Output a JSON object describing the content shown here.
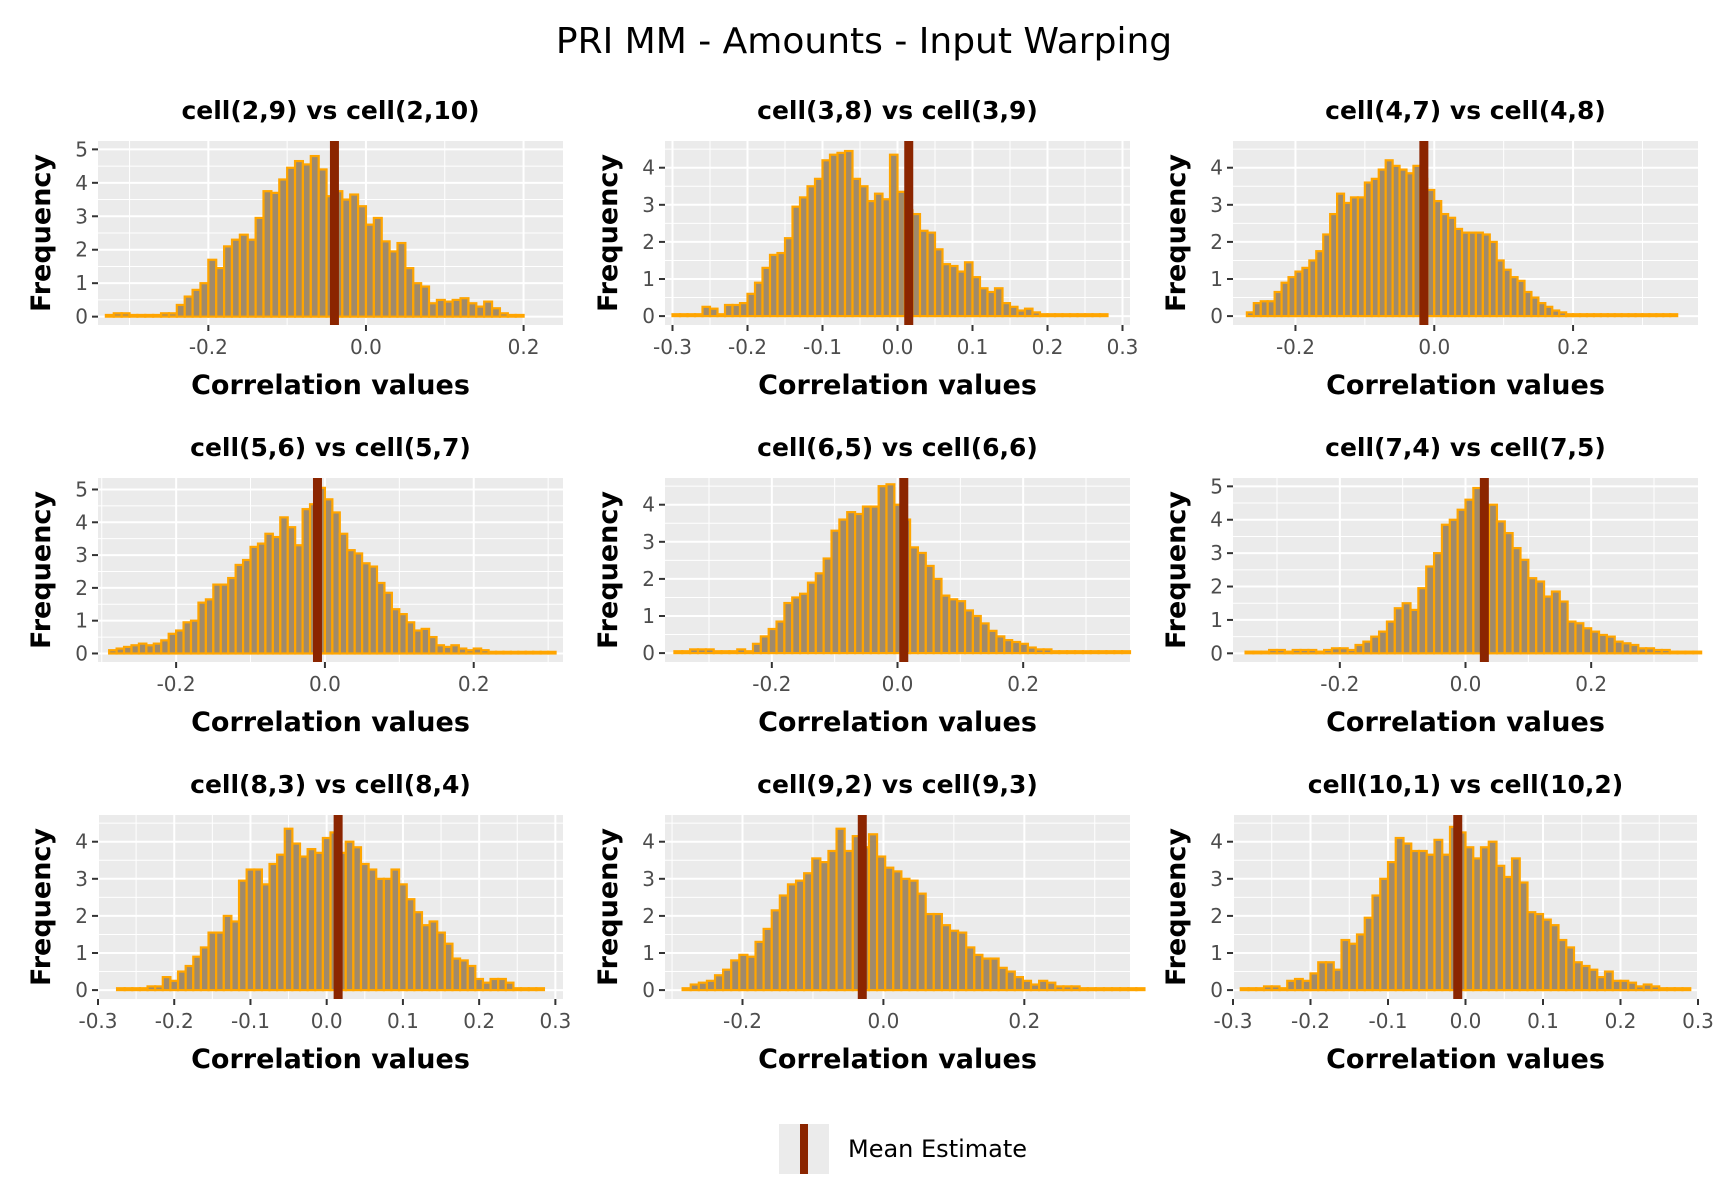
{
  "title": "PRI MM - Amounts - Input Warping",
  "legend": {
    "label": "Mean Estimate",
    "position": "bottom"
  },
  "colors": {
    "bar_fill": "#E69F00",
    "bar_inner": "#a08a6a",
    "bar_edge": "#FFA500",
    "mean_line": "#8B2500",
    "panel_bg": "#EBEBEB",
    "grid": "#FFFFFF"
  },
  "chart_data": [
    {
      "type": "histogram",
      "title": "cell(2,9) vs cell(2,10)",
      "xlabel": "Correlation values",
      "ylabel": "Frequency",
      "xlim": [
        -0.34,
        0.25
      ],
      "ylim": [
        -0.25,
        5.25
      ],
      "xticks": [
        -0.2,
        0.0,
        0.2
      ],
      "xtick_labels": [
        "-0.2",
        "0.0",
        "0.2"
      ],
      "yticks": [
        0,
        1,
        2,
        3,
        4,
        5
      ],
      "bins_start": -0.33,
      "bin_width": 0.01,
      "frequencies": [
        0.05,
        0.1,
        0.1,
        0.05,
        0.05,
        0.05,
        0.05,
        0.1,
        0.1,
        0.35,
        0.6,
        0.8,
        1.0,
        1.7,
        1.45,
        2.1,
        2.3,
        2.45,
        2.3,
        2.95,
        3.75,
        3.7,
        4.1,
        4.45,
        4.65,
        4.55,
        4.8,
        4.4,
        3.6,
        3.75,
        3.5,
        3.65,
        3.3,
        2.75,
        2.95,
        2.25,
        1.95,
        2.2,
        1.45,
        1.0,
        0.9,
        0.4,
        0.5,
        0.45,
        0.5,
        0.55,
        0.4,
        0.3,
        0.45,
        0.25,
        0.1,
        0.05,
        0.05
      ],
      "mean": -0.04,
      "grid": true
    },
    {
      "type": "histogram",
      "title": "cell(3,8) vs cell(3,9)",
      "xlabel": "Correlation values",
      "ylabel": "Frequency",
      "xlim": [
        -0.31,
        0.31
      ],
      "ylim": [
        -0.24,
        4.72
      ],
      "xticks": [
        -0.3,
        -0.2,
        -0.1,
        0.0,
        0.1,
        0.2,
        0.3
      ],
      "xtick_labels": [
        "-0.3",
        "-0.2",
        "-0.1",
        "0.0",
        "0.1",
        "0.2",
        "0.3"
      ],
      "yticks": [
        0,
        1,
        2,
        3,
        4
      ],
      "bins_start": -0.3,
      "bin_width": 0.01,
      "frequencies": [
        0.05,
        0.05,
        0.05,
        0.05,
        0.25,
        0.2,
        0.05,
        0.3,
        0.3,
        0.35,
        0.6,
        0.9,
        1.3,
        1.65,
        1.7,
        2.1,
        2.95,
        3.2,
        3.5,
        3.7,
        4.2,
        4.35,
        4.4,
        4.45,
        3.7,
        3.5,
        3.1,
        3.3,
        3.15,
        4.35,
        3.35,
        2.85,
        2.75,
        2.3,
        2.25,
        1.8,
        1.4,
        1.35,
        1.2,
        1.45,
        1.05,
        0.75,
        0.65,
        0.75,
        0.35,
        0.25,
        0.15,
        0.2,
        0.1,
        0.05,
        0.05,
        0.05,
        0.05,
        0.05,
        0.05,
        0.05,
        0.05,
        0.05
      ],
      "mean": 0.015,
      "grid": true
    },
    {
      "type": "histogram",
      "title": "cell(4,7) vs cell(4,8)",
      "xlabel": "Correlation values",
      "ylabel": "Frequency",
      "xlim": [
        -0.29,
        0.38
      ],
      "ylim": [
        -0.24,
        4.72
      ],
      "xticks": [
        -0.2,
        0.0,
        0.2
      ],
      "xtick_labels": [
        "-0.2",
        "0.0",
        "0.2"
      ],
      "yticks": [
        0,
        1,
        2,
        3,
        4
      ],
      "bins_start": -0.27,
      "bin_width": 0.01,
      "frequencies": [
        0.1,
        0.35,
        0.4,
        0.4,
        0.65,
        0.9,
        1.05,
        1.2,
        1.3,
        1.5,
        1.75,
        2.2,
        2.75,
        3.3,
        3.05,
        3.2,
        3.2,
        3.6,
        3.7,
        3.95,
        4.2,
        4.05,
        3.95,
        3.85,
        4.05,
        3.7,
        3.4,
        3.1,
        2.75,
        2.65,
        2.35,
        2.25,
        2.25,
        2.25,
        2.2,
        2.0,
        1.5,
        1.25,
        1.05,
        0.95,
        0.65,
        0.5,
        0.35,
        0.25,
        0.15,
        0.1,
        0.05,
        0.05,
        0.05,
        0.05,
        0.05,
        0.05,
        0.05,
        0.05,
        0.05,
        0.05,
        0.05,
        0.05,
        0.05,
        0.05,
        0.05,
        0.05
      ],
      "mean": -0.015,
      "grid": true
    },
    {
      "type": "histogram",
      "title": "cell(5,6) vs cell(5,7)",
      "xlabel": "Correlation values",
      "ylabel": "Frequency",
      "xlim": [
        -0.305,
        0.32
      ],
      "ylim": [
        -0.26,
        5.35
      ],
      "xticks": [
        -0.2,
        0.0,
        0.2
      ],
      "xtick_labels": [
        "-0.2",
        "0.0",
        "0.2"
      ],
      "yticks": [
        0,
        1,
        2,
        3,
        4,
        5
      ],
      "bins_start": -0.29,
      "bin_width": 0.01,
      "frequencies": [
        0.1,
        0.15,
        0.2,
        0.25,
        0.3,
        0.25,
        0.3,
        0.4,
        0.6,
        0.7,
        0.95,
        1.0,
        1.55,
        1.65,
        2.1,
        2.1,
        2.3,
        2.7,
        2.85,
        3.25,
        3.35,
        3.65,
        3.55,
        4.15,
        3.85,
        3.3,
        4.4,
        4.55,
        5.05,
        4.7,
        4.3,
        3.65,
        3.15,
        3.05,
        2.75,
        2.65,
        2.15,
        1.85,
        1.35,
        1.2,
        0.95,
        0.7,
        0.75,
        0.5,
        0.25,
        0.2,
        0.25,
        0.15,
        0.1,
        0.15,
        0.1,
        0.05,
        0.05,
        0.05,
        0.05,
        0.05,
        0.05,
        0.05,
        0.05,
        0.05
      ],
      "mean": -0.01,
      "grid": true
    },
    {
      "type": "histogram",
      "title": "cell(6,5) vs cell(6,6)",
      "xlabel": "Correlation values",
      "ylabel": "Frequency",
      "xlim": [
        -0.37,
        0.37
      ],
      "ylim": [
        -0.24,
        4.72
      ],
      "xticks": [
        -0.2,
        0.0,
        0.2
      ],
      "xtick_labels": [
        "-0.2",
        "0.0",
        "0.2"
      ],
      "yticks": [
        0,
        1,
        2,
        3,
        4
      ],
      "bins_start": -0.355,
      "bin_width": 0.0125,
      "frequencies": [
        0.05,
        0.05,
        0.1,
        0.1,
        0.1,
        0.05,
        0.05,
        0.05,
        0.1,
        0.05,
        0.25,
        0.45,
        0.65,
        0.85,
        1.35,
        1.5,
        1.6,
        1.9,
        2.15,
        2.55,
        3.3,
        3.6,
        3.8,
        3.75,
        3.95,
        3.95,
        4.5,
        4.55,
        4.0,
        3.6,
        2.85,
        2.7,
        2.35,
        2.0,
        1.55,
        1.45,
        1.4,
        1.15,
        1.0,
        0.8,
        0.6,
        0.45,
        0.35,
        0.3,
        0.25,
        0.15,
        0.1,
        0.1,
        0.05,
        0.05,
        0.05,
        0.05,
        0.05,
        0.05,
        0.05,
        0.05,
        0.05,
        0.05
      ],
      "mean": 0.01,
      "grid": true
    },
    {
      "type": "histogram",
      "title": "cell(7,4) vs cell(7,5)",
      "xlabel": "Correlation values",
      "ylabel": "Frequency",
      "xlim": [
        -0.37,
        0.37
      ],
      "ylim": [
        -0.26,
        5.25
      ],
      "xticks": [
        -0.2,
        0.0,
        0.2
      ],
      "xtick_labels": [
        "-0.2",
        "0.0",
        "0.2"
      ],
      "yticks": [
        0,
        1,
        2,
        3,
        4,
        5
      ],
      "bins_start": -0.35,
      "bin_width": 0.0125,
      "frequencies": [
        0.05,
        0.05,
        0.05,
        0.1,
        0.1,
        0.05,
        0.1,
        0.1,
        0.1,
        0.05,
        0.1,
        0.15,
        0.15,
        0.1,
        0.25,
        0.35,
        0.5,
        0.65,
        0.95,
        1.35,
        1.5,
        1.3,
        1.95,
        2.6,
        3.0,
        3.85,
        4.0,
        4.3,
        4.6,
        4.95,
        4.15,
        4.45,
        3.95,
        3.6,
        3.15,
        2.8,
        2.25,
        2.15,
        1.7,
        1.85,
        1.55,
        0.95,
        0.9,
        0.75,
        0.65,
        0.55,
        0.5,
        0.35,
        0.3,
        0.25,
        0.15,
        0.15,
        0.1,
        0.1,
        0.05,
        0.05,
        0.05,
        0.05
      ],
      "mean": 0.03,
      "grid": true
    },
    {
      "type": "histogram",
      "title": "cell(8,3) vs cell(8,4)",
      "xlabel": "Correlation values",
      "ylabel": "Frequency",
      "xlim": [
        -0.3,
        0.31
      ],
      "ylim": [
        -0.24,
        4.72
      ],
      "xticks": [
        -0.3,
        -0.2,
        -0.1,
        0.0,
        0.1,
        0.2,
        0.3
      ],
      "xtick_labels": [
        "-0.3",
        "-0.2",
        "-0.1",
        "0.0",
        "0.1",
        "0.2",
        "0.3"
      ],
      "yticks": [
        0,
        1,
        2,
        3,
        4
      ],
      "bins_start": -0.275,
      "bin_width": 0.01,
      "frequencies": [
        0.05,
        0.05,
        0.05,
        0.05,
        0.1,
        0.1,
        0.35,
        0.25,
        0.5,
        0.65,
        0.9,
        1.15,
        1.55,
        1.55,
        2.0,
        1.85,
        2.95,
        3.25,
        3.25,
        2.85,
        3.4,
        3.65,
        4.35,
        3.95,
        3.6,
        3.8,
        3.7,
        4.1,
        4.25,
        3.7,
        4.0,
        3.85,
        3.4,
        3.25,
        3.0,
        3.0,
        3.25,
        2.85,
        2.45,
        2.1,
        1.75,
        1.85,
        1.55,
        1.25,
        0.85,
        0.8,
        0.65,
        0.3,
        0.2,
        0.3,
        0.3,
        0.2,
        0.05,
        0.05,
        0.05,
        0.05
      ],
      "mean": 0.015,
      "grid": true
    },
    {
      "type": "histogram",
      "title": "cell(9,2) vs cell(9,3)",
      "xlabel": "Correlation values",
      "ylabel": "Frequency",
      "xlim": [
        -0.31,
        0.35
      ],
      "ylim": [
        -0.24,
        4.72
      ],
      "xticks": [
        -0.2,
        0.0,
        0.2
      ],
      "xtick_labels": [
        "-0.2",
        "0.0",
        "0.2"
      ],
      "yticks": [
        0,
        1,
        2,
        3,
        4
      ],
      "bins_start": -0.285,
      "bin_width": 0.0115,
      "frequencies": [
        0.05,
        0.15,
        0.2,
        0.25,
        0.4,
        0.55,
        0.8,
        0.95,
        0.9,
        1.3,
        1.65,
        2.15,
        2.55,
        2.85,
        2.95,
        3.15,
        3.55,
        3.45,
        3.75,
        4.35,
        3.75,
        4.15,
        3.85,
        4.2,
        3.6,
        3.3,
        3.2,
        3.0,
        2.95,
        2.6,
        2.05,
        2.05,
        1.75,
        1.6,
        1.55,
        1.15,
        0.95,
        0.85,
        0.85,
        0.6,
        0.5,
        0.35,
        0.25,
        0.15,
        0.25,
        0.2,
        0.1,
        0.1,
        0.1,
        0.05,
        0.05,
        0.05,
        0.05,
        0.05,
        0.05,
        0.05,
        0.05
      ],
      "mean": -0.03,
      "grid": true
    },
    {
      "type": "histogram",
      "title": "cell(10,1) vs cell(10,2)",
      "xlabel": "Correlation values",
      "ylabel": "Frequency",
      "xlim": [
        -0.3,
        0.3
      ],
      "ylim": [
        -0.24,
        4.72
      ],
      "xticks": [
        -0.3,
        -0.2,
        -0.1,
        0.0,
        0.1,
        0.2,
        0.3
      ],
      "xtick_labels": [
        "-0.3",
        "-0.2",
        "-0.1",
        "0.0",
        "0.1",
        "0.2",
        "0.3"
      ],
      "yticks": [
        0,
        1,
        2,
        3,
        4
      ],
      "bins_start": -0.29,
      "bin_width": 0.01,
      "frequencies": [
        0.05,
        0.05,
        0.05,
        0.1,
        0.1,
        0.05,
        0.25,
        0.3,
        0.25,
        0.45,
        0.75,
        0.75,
        0.55,
        1.35,
        1.25,
        1.5,
        1.95,
        2.55,
        3.0,
        3.45,
        4.1,
        3.95,
        3.75,
        3.75,
        3.65,
        4.05,
        3.65,
        4.4,
        4.25,
        3.85,
        3.55,
        3.85,
        4.0,
        3.35,
        3.05,
        3.55,
        2.9,
        2.1,
        2.05,
        1.9,
        1.75,
        1.35,
        1.15,
        0.75,
        0.65,
        0.55,
        0.35,
        0.5,
        0.25,
        0.25,
        0.2,
        0.1,
        0.15,
        0.1,
        0.05,
        0.05,
        0.05,
        0.05
      ],
      "mean": -0.01,
      "grid": true
    }
  ]
}
